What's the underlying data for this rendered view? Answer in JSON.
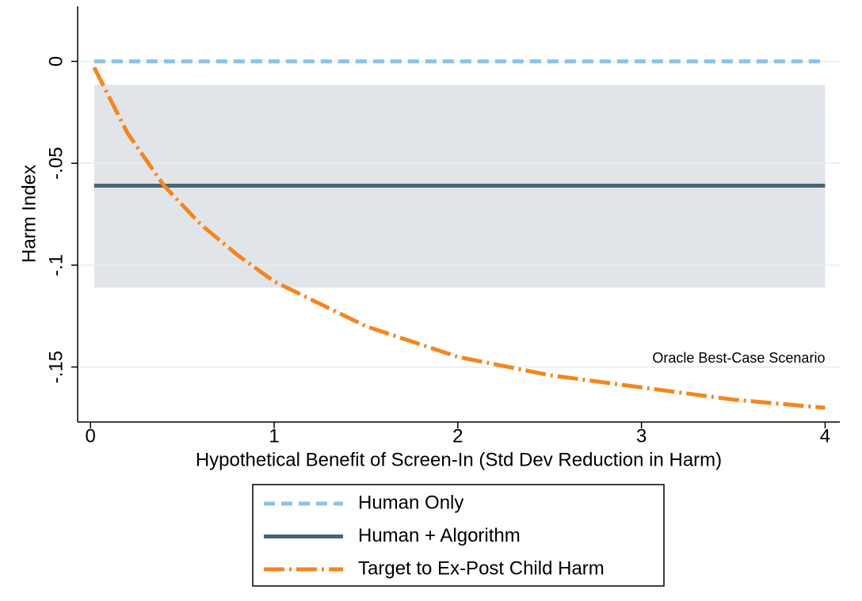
{
  "chart_data": {
    "type": "line",
    "xlabel": "Hypothetical Benefit of Screen-In (Std Dev Reduction in Harm)",
    "ylabel": "Harm Index",
    "xlim": [
      -0.07,
      4.08
    ],
    "ylim": [
      -0.177,
      0.027
    ],
    "xticks": [
      0,
      1,
      2,
      3,
      4
    ],
    "yticks": [
      {
        "value": 0,
        "label": "0"
      },
      {
        "value": -0.05,
        "label": "-.05"
      },
      {
        "value": -0.1,
        "label": "-.1"
      },
      {
        "value": -0.15,
        "label": "-.15"
      }
    ],
    "grid": true,
    "band": {
      "x": [
        0.02,
        4
      ],
      "upper": [
        -0.0115,
        -0.0115
      ],
      "lower": [
        -0.111,
        -0.111
      ],
      "color": "#e1e5e9"
    },
    "annotation": {
      "text": "Oracle Best-Case Scenario",
      "x": 4,
      "y": -0.146,
      "color": "#f5861f"
    },
    "legend": "bottom",
    "series": [
      {
        "name": "Human Only",
        "color": "#8ec3e8",
        "style": "dashed",
        "x": [
          0.02,
          4
        ],
        "values": [
          0,
          0
        ]
      },
      {
        "name": "Human + Algorithm",
        "color": "#4b6477",
        "style": "solid",
        "x": [
          0.02,
          4
        ],
        "values": [
          -0.061,
          -0.061
        ]
      },
      {
        "name": "Target to Ex-Post Child Harm",
        "color": "#f5861f",
        "style": "dashdot",
        "x": [
          0.02,
          0.2,
          0.4,
          0.6,
          0.8,
          1,
          1.5,
          2,
          2.5,
          3,
          3.5,
          4
        ],
        "values": [
          -0.003,
          -0.035,
          -0.061,
          -0.08,
          -0.095,
          -0.108,
          -0.13,
          -0.145,
          -0.154,
          -0.16,
          -0.166,
          -0.17
        ]
      }
    ]
  }
}
